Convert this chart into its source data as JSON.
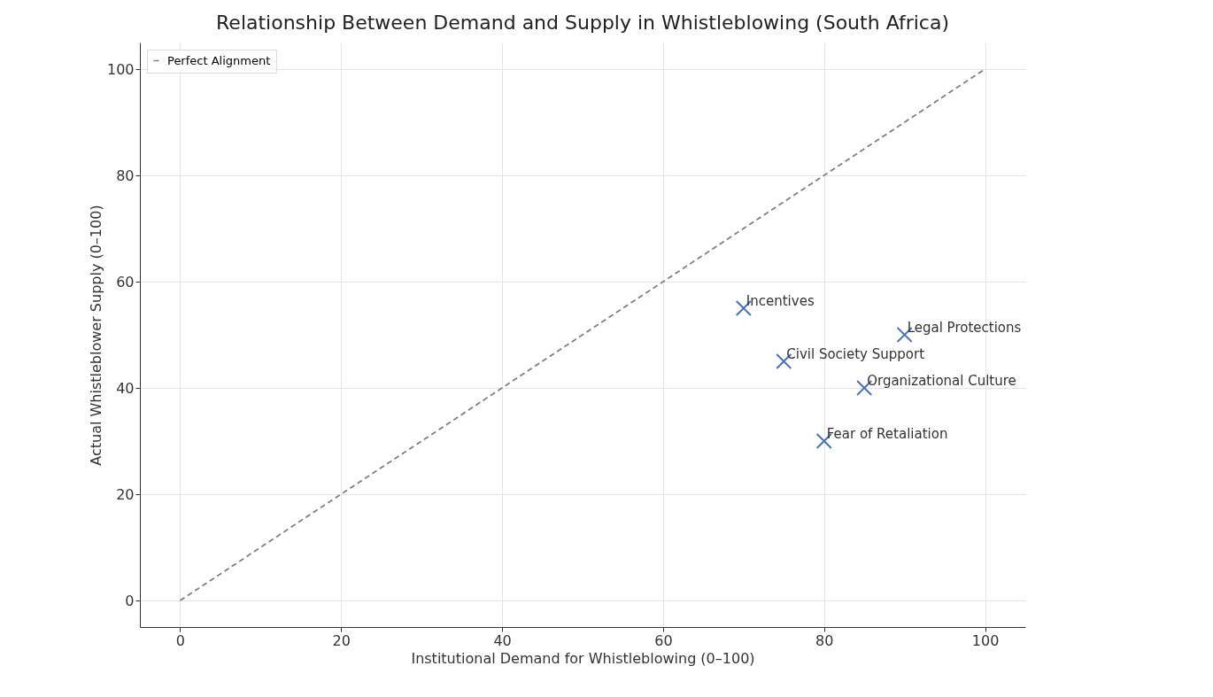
{
  "chart_data": {
    "type": "scatter",
    "title": "Relationship Between Demand and Supply in Whistleblowing (South Africa)",
    "xlabel": "Institutional Demand for Whistleblowing (0–100)",
    "ylabel": "Actual Whistleblower Supply (0–100)",
    "xlim": [
      -5,
      105
    ],
    "ylim": [
      -5,
      105
    ],
    "xticks": [
      0,
      20,
      40,
      60,
      80,
      100
    ],
    "yticks": [
      0,
      20,
      40,
      60,
      80,
      100
    ],
    "grid": true,
    "legend": "top left",
    "series": [
      {
        "type": "line",
        "name": "Perfect Alignment",
        "color": "#808080",
        "line_style": "dashed",
        "x": [
          0,
          100
        ],
        "values": [
          0,
          100
        ]
      },
      {
        "color": "#4c72b0",
        "marker": "cross",
        "x": [
          70,
          90,
          75,
          85,
          80
        ],
        "values": [
          55,
          50,
          45,
          40,
          30
        ]
      }
    ],
    "annotations": [
      {
        "text": "Incentives",
        "x": 70,
        "y": 55
      },
      {
        "text": "Legal Protections",
        "x": 90,
        "y": 50
      },
      {
        "text": "Civil Society Support",
        "x": 75,
        "y": 45
      },
      {
        "text": "Organizational Culture",
        "x": 85,
        "y": 40
      },
      {
        "text": "Fear of Retaliation",
        "x": 80,
        "y": 30
      }
    ]
  }
}
